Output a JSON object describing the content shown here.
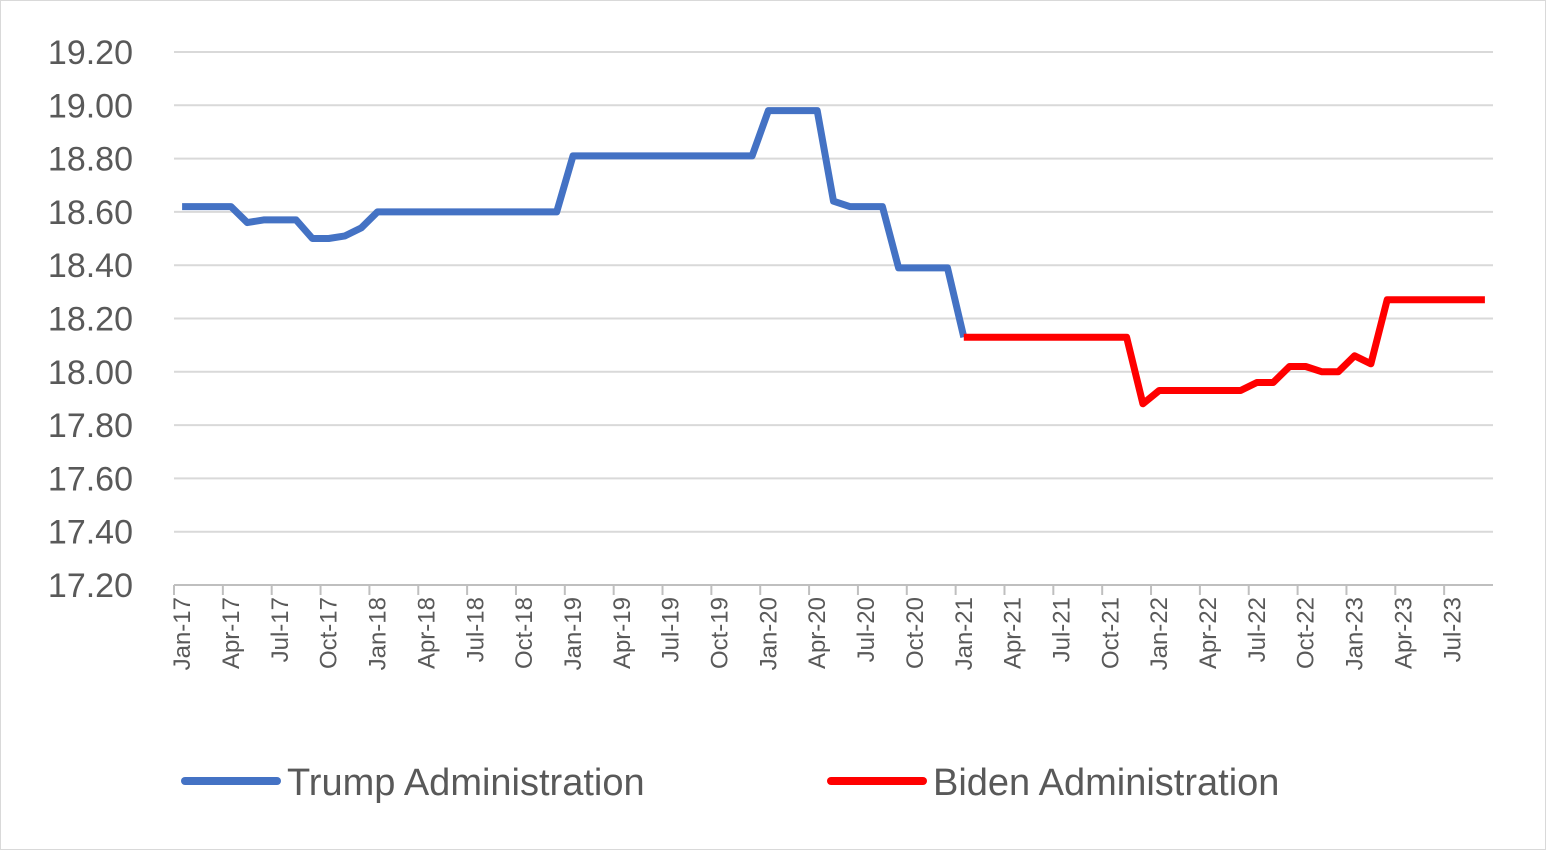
{
  "chart_data": {
    "type": "line",
    "title": "",
    "xlabel": "",
    "ylabel": "",
    "ylim": [
      17.2,
      19.2
    ],
    "yticks": [
      "17.20",
      "17.40",
      "17.60",
      "17.80",
      "18.00",
      "18.20",
      "18.40",
      "18.60",
      "18.80",
      "19.00",
      "19.20"
    ],
    "x_range": [
      "Jan-17",
      "Sep-23"
    ],
    "xticks": [
      "Jan-17",
      "Apr-17",
      "Jul-17",
      "Oct-17",
      "Jan-18",
      "Apr-18",
      "Jul-18",
      "Oct-18",
      "Jan-19",
      "Apr-19",
      "Jul-19",
      "Oct-19",
      "Jan-20",
      "Apr-20",
      "Jul-20",
      "Oct-20",
      "Jan-21",
      "Apr-21",
      "Jul-21",
      "Oct-21",
      "Jan-22",
      "Apr-22",
      "Jul-22",
      "Oct-22",
      "Jan-23",
      "Apr-23",
      "Jul-23"
    ],
    "grid": true,
    "legend_position": "bottom",
    "series": [
      {
        "name": "Trump Administration",
        "color": "#4472C4",
        "points": [
          [
            "Jan-17",
            18.62
          ],
          [
            "Feb-17",
            18.62
          ],
          [
            "Mar-17",
            18.62
          ],
          [
            "Apr-17",
            18.62
          ],
          [
            "May-17",
            18.56
          ],
          [
            "Jun-17",
            18.57
          ],
          [
            "Jul-17",
            18.57
          ],
          [
            "Aug-17",
            18.57
          ],
          [
            "Sep-17",
            18.5
          ],
          [
            "Oct-17",
            18.5
          ],
          [
            "Nov-17",
            18.51
          ],
          [
            "Dec-17",
            18.54
          ],
          [
            "Jan-18",
            18.6
          ],
          [
            "Feb-18",
            18.6
          ],
          [
            "Mar-18",
            18.6
          ],
          [
            "Apr-18",
            18.6
          ],
          [
            "May-18",
            18.6
          ],
          [
            "Jun-18",
            18.6
          ],
          [
            "Jul-18",
            18.6
          ],
          [
            "Aug-18",
            18.6
          ],
          [
            "Sep-18",
            18.6
          ],
          [
            "Oct-18",
            18.6
          ],
          [
            "Nov-18",
            18.6
          ],
          [
            "Dec-18",
            18.6
          ],
          [
            "Jan-19",
            18.81
          ],
          [
            "Feb-19",
            18.81
          ],
          [
            "Mar-19",
            18.81
          ],
          [
            "Apr-19",
            18.81
          ],
          [
            "May-19",
            18.81
          ],
          [
            "Jun-19",
            18.81
          ],
          [
            "Jul-19",
            18.81
          ],
          [
            "Aug-19",
            18.81
          ],
          [
            "Sep-19",
            18.81
          ],
          [
            "Oct-19",
            18.81
          ],
          [
            "Nov-19",
            18.81
          ],
          [
            "Dec-19",
            18.81
          ],
          [
            "Jan-20",
            18.98
          ],
          [
            "Feb-20",
            18.98
          ],
          [
            "Mar-20",
            18.98
          ],
          [
            "Apr-20",
            18.98
          ],
          [
            "May-20",
            18.64
          ],
          [
            "Jun-20",
            18.62
          ],
          [
            "Jul-20",
            18.62
          ],
          [
            "Aug-20",
            18.62
          ],
          [
            "Sep-20",
            18.39
          ],
          [
            "Oct-20",
            18.39
          ],
          [
            "Nov-20",
            18.39
          ],
          [
            "Dec-20",
            18.39
          ],
          [
            "Jan-21",
            18.13
          ]
        ]
      },
      {
        "name": "Biden Administration",
        "color": "#FF0000",
        "points": [
          [
            "Jan-21",
            18.13
          ],
          [
            "Feb-21",
            18.13
          ],
          [
            "Mar-21",
            18.13
          ],
          [
            "Apr-21",
            18.13
          ],
          [
            "May-21",
            18.13
          ],
          [
            "Jun-21",
            18.13
          ],
          [
            "Jul-21",
            18.13
          ],
          [
            "Aug-21",
            18.13
          ],
          [
            "Sep-21",
            18.13
          ],
          [
            "Oct-21",
            18.13
          ],
          [
            "Nov-21",
            18.13
          ],
          [
            "Dec-21",
            17.88
          ],
          [
            "Jan-22",
            17.93
          ],
          [
            "Feb-22",
            17.93
          ],
          [
            "Mar-22",
            17.93
          ],
          [
            "Apr-22",
            17.93
          ],
          [
            "May-22",
            17.93
          ],
          [
            "Jun-22",
            17.93
          ],
          [
            "Jul-22",
            17.96
          ],
          [
            "Aug-22",
            17.96
          ],
          [
            "Sep-22",
            18.02
          ],
          [
            "Oct-22",
            18.02
          ],
          [
            "Nov-22",
            18.0
          ],
          [
            "Dec-22",
            18.0
          ],
          [
            "Jan-23",
            18.06
          ],
          [
            "Feb-23",
            18.03
          ],
          [
            "Mar-23",
            18.27
          ],
          [
            "Apr-23",
            18.27
          ],
          [
            "May-23",
            18.27
          ],
          [
            "Jun-23",
            18.27
          ],
          [
            "Jul-23",
            18.27
          ],
          [
            "Aug-23",
            18.27
          ],
          [
            "Sep-23",
            18.27
          ]
        ]
      }
    ]
  }
}
